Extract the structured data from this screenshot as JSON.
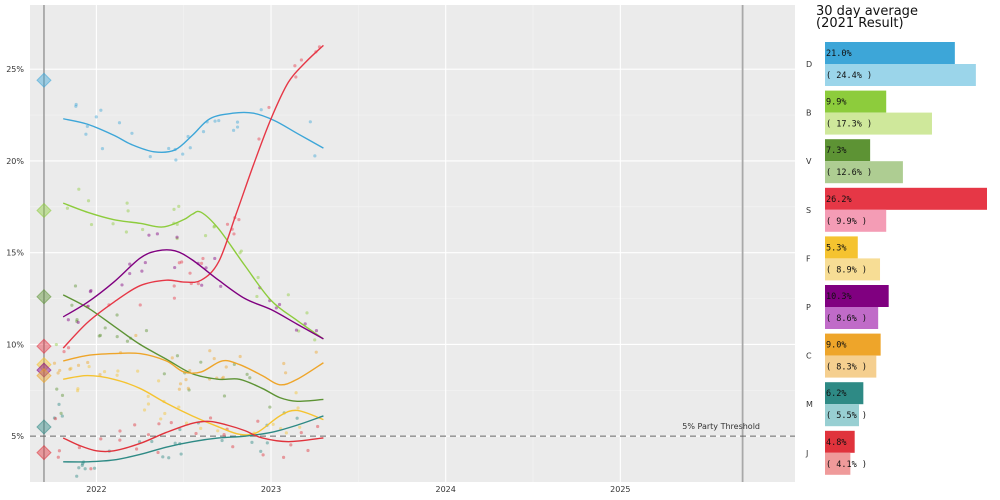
{
  "chart_data": [
    {
      "type": "line",
      "title": "",
      "xlabel": "",
      "ylabel": "",
      "x_ticks": [
        "2022",
        "2023",
        "2024",
        "2025"
      ],
      "x_tick_values": [
        2022.0,
        2023.0,
        2024.0,
        2025.0
      ],
      "xlim": [
        2021.62,
        2026.0
      ],
      "y_ticks": [
        "5%",
        "10%",
        "15%",
        "20%",
        "25%"
      ],
      "y_tick_values": [
        5,
        10,
        15,
        20,
        25
      ],
      "ylim": [
        2.5,
        28.5
      ],
      "grid": true,
      "election_lines": [
        2021.7,
        2025.7
      ],
      "threshold": {
        "value": 5,
        "label": "5% Party Threshold"
      },
      "series": [
        {
          "party": "D",
          "color": "#3da6d8",
          "result2021": 24.4,
          "trend": [
            [
              2021.81,
              22.3
            ],
            [
              2021.95,
              22.0
            ],
            [
              2022.1,
              21.4
            ],
            [
              2022.2,
              20.9
            ],
            [
              2022.33,
              20.5
            ],
            [
              2022.45,
              20.6
            ],
            [
              2022.55,
              21.4
            ],
            [
              2022.65,
              22.3
            ],
            [
              2022.78,
              22.6
            ],
            [
              2022.9,
              22.6
            ],
            [
              2023.02,
              22.2
            ],
            [
              2023.15,
              21.5
            ],
            [
              2023.3,
              20.7
            ]
          ]
        },
        {
          "party": "B",
          "color": "#8dcc3c",
          "result2021": 17.3,
          "trend": [
            [
              2021.81,
              17.7
            ],
            [
              2021.95,
              17.2
            ],
            [
              2022.1,
              16.8
            ],
            [
              2022.25,
              16.6
            ],
            [
              2022.38,
              16.4
            ],
            [
              2022.5,
              16.8
            ],
            [
              2022.55,
              17.1
            ],
            [
              2022.6,
              17.2
            ],
            [
              2022.7,
              16.3
            ],
            [
              2022.85,
              14.3
            ],
            [
              2023.0,
              12.4
            ],
            [
              2023.15,
              11.3
            ],
            [
              2023.3,
              10.3
            ]
          ]
        },
        {
          "party": "V",
          "color": "#5d9334",
          "result2021": 12.6,
          "trend": [
            [
              2021.81,
              12.7
            ],
            [
              2021.95,
              12.0
            ],
            [
              2022.1,
              11.0
            ],
            [
              2022.25,
              10.0
            ],
            [
              2022.4,
              9.2
            ],
            [
              2022.55,
              8.4
            ],
            [
              2022.7,
              8.1
            ],
            [
              2022.82,
              8.1
            ],
            [
              2022.95,
              7.6
            ],
            [
              2023.05,
              7.1
            ],
            [
              2023.15,
              6.9
            ],
            [
              2023.3,
              7.0
            ]
          ]
        },
        {
          "party": "S",
          "color": "#e63746",
          "result2021": 9.9,
          "trend": [
            [
              2021.81,
              9.8
            ],
            [
              2021.95,
              11.2
            ],
            [
              2022.1,
              12.3
            ],
            [
              2022.25,
              13.2
            ],
            [
              2022.4,
              13.5
            ],
            [
              2022.5,
              13.4
            ],
            [
              2022.6,
              13.5
            ],
            [
              2022.7,
              14.5
            ],
            [
              2022.8,
              17.1
            ],
            [
              2022.9,
              19.8
            ],
            [
              2023.0,
              22.3
            ],
            [
              2023.1,
              24.3
            ],
            [
              2023.2,
              25.4
            ],
            [
              2023.3,
              26.3
            ]
          ]
        },
        {
          "party": "F",
          "color": "#f5c330",
          "result2021": 8.9,
          "trend": [
            [
              2021.81,
              8.1
            ],
            [
              2021.95,
              8.3
            ],
            [
              2022.1,
              8.1
            ],
            [
              2022.25,
              7.6
            ],
            [
              2022.4,
              6.8
            ],
            [
              2022.55,
              6.1
            ],
            [
              2022.7,
              5.5
            ],
            [
              2022.82,
              5.1
            ],
            [
              2022.92,
              5.2
            ],
            [
              2023.05,
              6.1
            ],
            [
              2023.15,
              6.4
            ],
            [
              2023.3,
              5.9
            ]
          ]
        },
        {
          "party": "P",
          "color": "#800080",
          "result2021": 8.6,
          "trend": [
            [
              2021.81,
              11.5
            ],
            [
              2021.95,
              12.3
            ],
            [
              2022.1,
              13.4
            ],
            [
              2022.25,
              14.7
            ],
            [
              2022.35,
              15.1
            ],
            [
              2022.45,
              15.1
            ],
            [
              2022.55,
              14.6
            ],
            [
              2022.7,
              13.5
            ],
            [
              2022.85,
              12.5
            ],
            [
              2023.0,
              11.9
            ],
            [
              2023.15,
              11.1
            ],
            [
              2023.3,
              10.3
            ]
          ]
        },
        {
          "party": "C",
          "color": "#eea52a",
          "result2021": 8.3,
          "trend": [
            [
              2021.81,
              9.1
            ],
            [
              2021.95,
              9.4
            ],
            [
              2022.1,
              9.5
            ],
            [
              2022.25,
              9.5
            ],
            [
              2022.4,
              9.1
            ],
            [
              2022.5,
              8.5
            ],
            [
              2022.6,
              8.5
            ],
            [
              2022.72,
              9.1
            ],
            [
              2022.82,
              8.9
            ],
            [
              2022.95,
              8.3
            ],
            [
              2023.05,
              7.8
            ],
            [
              2023.15,
              8.1
            ],
            [
              2023.3,
              9.0
            ]
          ]
        },
        {
          "party": "M",
          "color": "#2e8a85",
          "result2021": 5.5,
          "trend": [
            [
              2021.81,
              3.6
            ],
            [
              2021.95,
              3.6
            ],
            [
              2022.1,
              3.7
            ],
            [
              2022.25,
              4.0
            ],
            [
              2022.4,
              4.4
            ],
            [
              2022.55,
              4.7
            ],
            [
              2022.7,
              4.9
            ],
            [
              2022.85,
              5.0
            ],
            [
              2023.0,
              5.2
            ],
            [
              2023.15,
              5.6
            ],
            [
              2023.3,
              6.1
            ]
          ]
        },
        {
          "party": "J",
          "color": "#e0333c",
          "result2021": 4.1,
          "trend": [
            [
              2021.81,
              4.9
            ],
            [
              2021.9,
              4.5
            ],
            [
              2022.0,
              4.2
            ],
            [
              2022.1,
              4.2
            ],
            [
              2022.25,
              4.6
            ],
            [
              2022.4,
              5.2
            ],
            [
              2022.55,
              5.7
            ],
            [
              2022.65,
              5.8
            ],
            [
              2022.75,
              5.6
            ],
            [
              2022.85,
              5.3
            ],
            [
              2022.95,
              4.9
            ],
            [
              2023.1,
              4.7
            ],
            [
              2023.3,
              4.9
            ]
          ]
        }
      ]
    },
    {
      "type": "bar",
      "title": "30 day average",
      "subtitle": "(2021 Result)",
      "categories": [
        "D",
        "B",
        "V",
        "S",
        "F",
        "P",
        "C",
        "M",
        "J"
      ],
      "series": [
        {
          "values": [
            21.0,
            9.9,
            7.3,
            26.2,
            5.3,
            10.3,
            9.0,
            6.2,
            4.8
          ],
          "labels": [
            "21.0%",
            "9.9%",
            "7.3%",
            "26.2%",
            "5.3%",
            "10.3%",
            "9.0%",
            "6.2%",
            "4.8%"
          ],
          "colors": [
            "#3da6d8",
            "#8dcc3c",
            "#5d9334",
            "#e63746",
            "#f5c330",
            "#800080",
            "#eea52a",
            "#2e8a85",
            "#e0333c"
          ]
        },
        {
          "values": [
            24.4,
            17.3,
            12.6,
            9.9,
            8.9,
            8.6,
            8.3,
            5.5,
            4.1
          ],
          "labels": [
            "( 24.4% )",
            "( 17.3% )",
            "( 12.6% )",
            "( 9.9% )",
            "( 8.9% )",
            "( 8.6% )",
            "( 8.3% )",
            "( 5.5% )",
            "( 4.1% )"
          ],
          "colors": [
            "#9bd5ea",
            "#cfe89b",
            "#aecd92",
            "#f49cb5",
            "#f7dd95",
            "#c06bc8",
            "#f5cf8f",
            "#98cfd2",
            "#ef9a9a"
          ]
        }
      ],
      "xlim": [
        0,
        26.2
      ]
    }
  ]
}
